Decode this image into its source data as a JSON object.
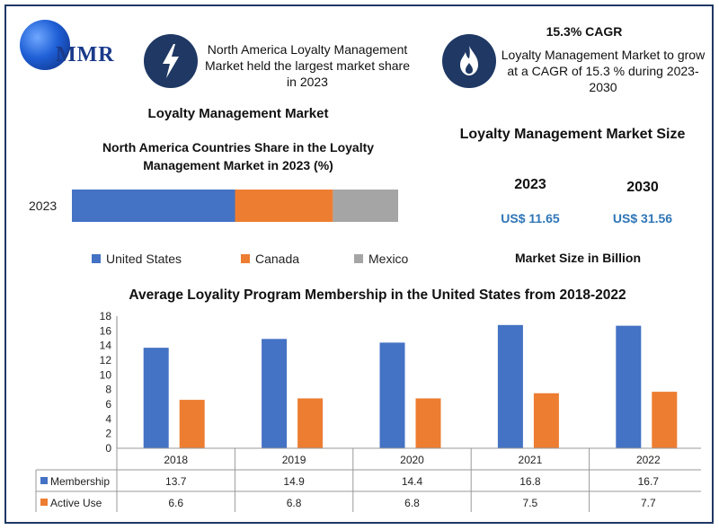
{
  "header": {
    "logo_text": "MMR",
    "info_left": "North America Loyalty Management Market held the largest market share in 2023",
    "cagr_title": "15.3% CAGR",
    "cagr_text": "Loyalty Management Market to grow at a CAGR of 15.3 % during 2023-2030",
    "icons": [
      "globe-icon",
      "lightning-icon",
      "flame-icon"
    ],
    "colors": {
      "navy": "#1f3864",
      "accent": "#2e75b6"
    }
  },
  "section_title": "Loyalty Management Market",
  "market_size": {
    "title": "Loyalty Management Market Size",
    "years": [
      "2023",
      "2030"
    ],
    "values": [
      "US$ 11.65",
      "US$ 31.56"
    ],
    "unit_label": "Market Size in Billion"
  },
  "chart_data": [
    {
      "type": "bar",
      "orientation": "horizontal-stacked",
      "title": "North America Countries Share in the Loyalty Management Market in 2023 (%)",
      "categories": [
        "2023"
      ],
      "series": [
        {
          "name": "United States",
          "values": [
            50
          ],
          "color": "#4472c4"
        },
        {
          "name": "Canada",
          "values": [
            30
          ],
          "color": "#ed7d31"
        },
        {
          "name": "Mexico",
          "values": [
            20
          ],
          "color": "#a5a5a5"
        }
      ],
      "legend": "bottom",
      "grid": false
    },
    {
      "type": "bar",
      "title": "Average Loyality Program Membership in the United States from 2018-2022",
      "categories": [
        "2018",
        "2019",
        "2020",
        "2021",
        "2022"
      ],
      "series": [
        {
          "name": "Membership",
          "values": [
            13.7,
            14.9,
            14.4,
            16.8,
            16.7
          ],
          "color": "#4472c4"
        },
        {
          "name": "Active Use",
          "values": [
            6.6,
            6.8,
            6.8,
            7.5,
            7.7
          ],
          "color": "#ed7d31"
        }
      ],
      "y_ticks": [
        "0",
        "2",
        "4",
        "6",
        "8",
        "10",
        "12",
        "14",
        "16",
        "18"
      ],
      "ylim": [
        0,
        18
      ],
      "legend": "data-table",
      "grid": false
    }
  ]
}
